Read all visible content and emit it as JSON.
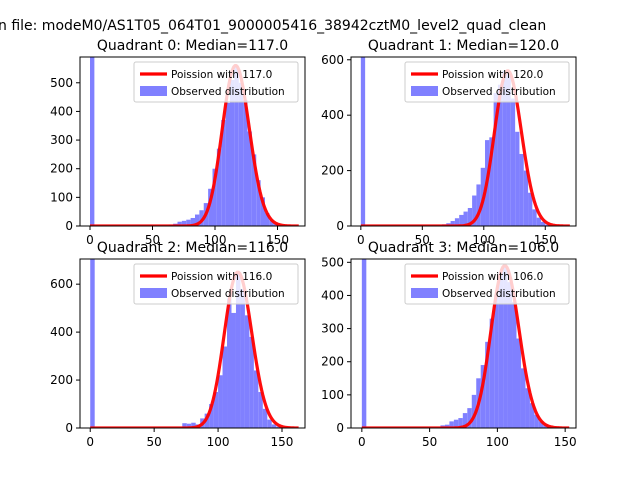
{
  "figure": {
    "suptitle": "n file: modeM0/AS1T05_064T01_9000005416_38942cztM0_level2_quad_clean"
  },
  "colors": {
    "poisson": "#ff0000",
    "observed": "#8080ff",
    "axes": "#000000"
  },
  "chart_data": [
    {
      "type": "bar",
      "title": "Quadrant 0: Median=117.0",
      "xlim": [
        -8,
        172
      ],
      "ylim": [
        0,
        590
      ],
      "xticks": [
        0,
        50,
        100,
        150
      ],
      "yticks": [
        0,
        100,
        200,
        300,
        400,
        500
      ],
      "median": 117.0,
      "legend": [
        "Poission with 117.0",
        "Observed distribution"
      ],
      "legend_position": "upper right",
      "bin_width": 3.5,
      "hist_x": [
        0,
        63,
        66.5,
        70,
        73.5,
        77,
        80.5,
        84,
        87.5,
        91,
        94.5,
        98,
        101.5,
        105,
        108.5,
        112,
        115.5,
        119,
        122.5,
        126,
        129.5,
        133,
        136.5,
        140,
        143.5,
        147
      ],
      "hist_counts": [
        590,
        5,
        8,
        15,
        18,
        22,
        28,
        40,
        55,
        80,
        130,
        200,
        270,
        370,
        430,
        510,
        560,
        500,
        440,
        330,
        250,
        160,
        100,
        45,
        20,
        8
      ]
    },
    {
      "type": "bar",
      "title": "Quadrant 1: Median=120.0",
      "xlim": [
        -8,
        175
      ],
      "ylim": [
        0,
        610
      ],
      "xticks": [
        0,
        50,
        100,
        150
      ],
      "yticks": [
        0,
        200,
        400,
        600
      ],
      "median": 120.0,
      "legend": [
        "Poission with 120.0",
        "Observed distribution"
      ],
      "legend_position": "upper right",
      "bin_width": 3.5,
      "hist_x": [
        0,
        66,
        69.5,
        73,
        76.5,
        80,
        83.5,
        87,
        90.5,
        94,
        97.5,
        101,
        104.5,
        108,
        111.5,
        115,
        118.5,
        122,
        125.5,
        129,
        132.5,
        136,
        139.5,
        143,
        146.5,
        150
      ],
      "hist_counts": [
        610,
        6,
        10,
        18,
        28,
        40,
        52,
        65,
        110,
        150,
        210,
        310,
        320,
        480,
        510,
        560,
        550,
        460,
        340,
        260,
        200,
        120,
        60,
        30,
        15,
        5
      ]
    },
    {
      "type": "bar",
      "title": "Quadrant 2: Median=116.0",
      "xlim": [
        -8,
        168
      ],
      "ylim": [
        0,
        705
      ],
      "xticks": [
        0,
        50,
        100,
        150
      ],
      "yticks": [
        0,
        200,
        400,
        600
      ],
      "median": 116.0,
      "legend": [
        "Poission with 116.0",
        "Observed distribution"
      ],
      "legend_position": "upper right",
      "bin_width": 3.5,
      "hist_x": [
        0,
        72,
        75.5,
        79,
        82.5,
        86,
        89.5,
        93,
        96.5,
        100,
        103.5,
        107,
        110.5,
        114,
        117.5,
        121,
        124.5,
        128,
        131.5,
        135,
        138.5,
        142,
        145.5
      ],
      "hist_counts": [
        705,
        20,
        18,
        22,
        15,
        40,
        60,
        100,
        150,
        220,
        340,
        540,
        480,
        650,
        580,
        470,
        380,
        240,
        150,
        80,
        35,
        15,
        6
      ]
    },
    {
      "type": "bar",
      "title": "Quadrant 3: Median=106.0",
      "xlim": [
        -8,
        158
      ],
      "ylim": [
        0,
        510
      ],
      "xticks": [
        0,
        50,
        100,
        150
      ],
      "yticks": [
        0,
        100,
        200,
        300,
        400,
        500
      ],
      "median": 106.0,
      "legend": [
        "Poission with 106.0",
        "Observed distribution"
      ],
      "legend_position": "upper right",
      "bin_width": 3.3,
      "hist_x": [
        0,
        58,
        61.3,
        64.6,
        67.9,
        71.2,
        74.5,
        77.8,
        81.1,
        84.4,
        87.7,
        91,
        94.3,
        97.6,
        100.9,
        104.2,
        107.5,
        110.8,
        114.1,
        117.4,
        120.7,
        124,
        127.3,
        130.6,
        133.9,
        137.2
      ],
      "hist_counts": [
        510,
        8,
        10,
        20,
        25,
        30,
        45,
        60,
        100,
        150,
        190,
        260,
        330,
        400,
        470,
        490,
        440,
        380,
        270,
        180,
        120,
        75,
        40,
        20,
        10,
        4
      ]
    }
  ]
}
